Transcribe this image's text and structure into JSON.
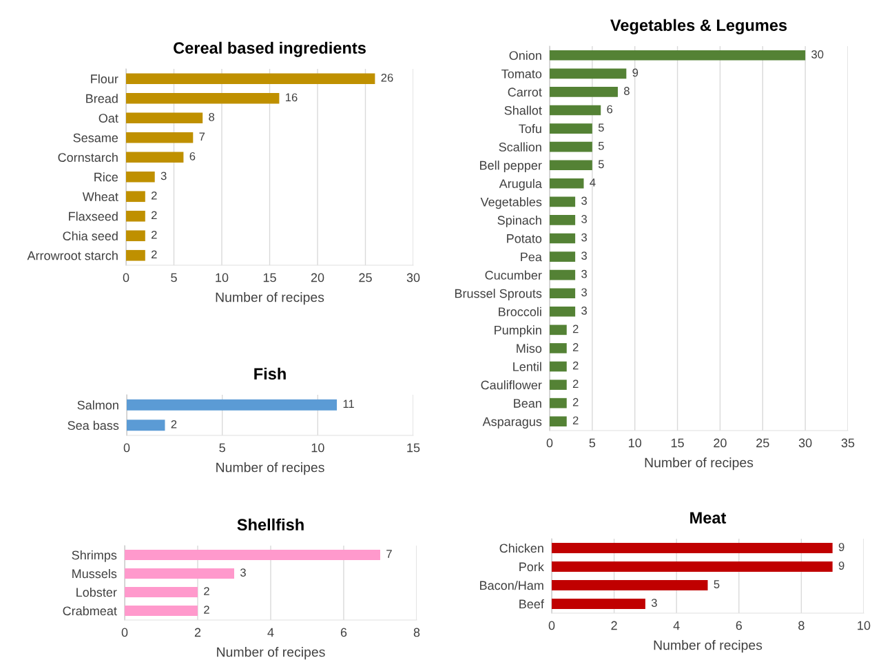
{
  "chart_data": [
    {
      "type": "bar",
      "orientation": "horizontal",
      "title": "Cereal based ingredients",
      "xlabel": "Number of recipes",
      "categories": [
        "Flour",
        "Bread",
        "Oat",
        "Sesame",
        "Cornstarch",
        "Rice",
        "Wheat",
        "Flaxseed",
        "Chia seed",
        "Arrowroot starch"
      ],
      "values": [
        26,
        16,
        8,
        7,
        6,
        3,
        2,
        2,
        2,
        2
      ],
      "color": "#bf9000",
      "xlim": [
        0,
        30
      ],
      "xticks": [
        0,
        5,
        10,
        15,
        20,
        25,
        30
      ],
      "grid": "x",
      "data_labels": true
    },
    {
      "type": "bar",
      "orientation": "horizontal",
      "title": "Fish",
      "xlabel": "Number of recipes",
      "categories": [
        "Salmon",
        "Sea bass"
      ],
      "values": [
        11,
        2
      ],
      "color": "#5b9bd5",
      "xlim": [
        0,
        15
      ],
      "xticks": [
        0,
        5,
        10,
        15
      ],
      "grid": "x",
      "data_labels": true
    },
    {
      "type": "bar",
      "orientation": "horizontal",
      "title": "Shellfish",
      "xlabel": "Number of recipes",
      "categories": [
        "Shrimps",
        "Mussels",
        "Lobster",
        "Crabmeat"
      ],
      "values": [
        7,
        3,
        2,
        2
      ],
      "color": "#ff99cc",
      "xlim": [
        0,
        8
      ],
      "xticks": [
        0,
        2,
        4,
        6,
        8
      ],
      "grid": "x",
      "data_labels": true
    },
    {
      "type": "bar",
      "orientation": "horizontal",
      "title": "Vegetables & Legumes",
      "xlabel": "Number of recipes",
      "categories": [
        "Onion",
        "Tomato",
        "Carrot",
        "Shallot",
        "Tofu",
        "Scallion",
        "Bell pepper",
        "Arugula",
        "Vegetables",
        "Spinach",
        "Potato",
        "Pea",
        "Cucumber",
        "Brussel Sprouts",
        "Broccoli",
        "Pumpkin",
        "Miso",
        "Lentil",
        "Cauliflower",
        "Bean",
        "Asparagus"
      ],
      "values": [
        30,
        9,
        8,
        6,
        5,
        5,
        5,
        4,
        3,
        3,
        3,
        3,
        3,
        3,
        3,
        2,
        2,
        2,
        2,
        2,
        2
      ],
      "color": "#548235",
      "xlim": [
        0,
        35
      ],
      "xticks": [
        0,
        5,
        10,
        15,
        20,
        25,
        30,
        35
      ],
      "grid": "x",
      "data_labels": true
    },
    {
      "type": "bar",
      "orientation": "horizontal",
      "title": "Meat",
      "xlabel": "Number of recipes",
      "categories": [
        "Chicken",
        "Pork",
        "Bacon/Ham",
        "Beef"
      ],
      "values": [
        9,
        9,
        5,
        3
      ],
      "color": "#c00000",
      "xlim": [
        0,
        10
      ],
      "xticks": [
        0,
        2,
        4,
        6,
        8,
        10
      ],
      "grid": "x",
      "data_labels": true
    }
  ]
}
